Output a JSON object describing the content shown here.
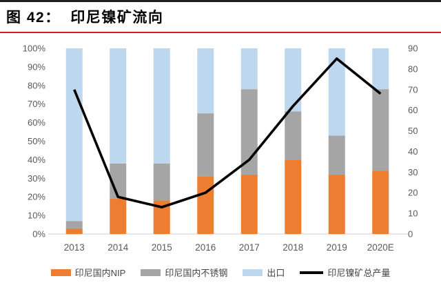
{
  "page": {
    "title": "图 42：  印尼镍矿流向"
  },
  "colors": {
    "top_rule": "#1f1f1f",
    "red_rule": "#cf1d1d",
    "axis_text": "#595959",
    "baseline": "#d9d9d9",
    "bar_nip": "#ed7d31",
    "bar_stainless": "#a5a5a5",
    "bar_export": "#bdd7ee",
    "line_total": "#000000"
  },
  "chart_data": {
    "type": "bar",
    "subtype": "stacked-bar-with-line",
    "title": "印尼镍矿流向",
    "categories": [
      "2013",
      "2014",
      "2015",
      "2016",
      "2017",
      "2018",
      "2019",
      "2020E"
    ],
    "series": [
      {
        "name": "印尼国内NIP",
        "kind": "bar",
        "axis": "left",
        "color": "#ed7d31",
        "values": [
          3,
          19,
          18,
          31,
          32,
          40,
          32,
          34
        ]
      },
      {
        "name": "印尼国内不锈钢",
        "kind": "bar",
        "axis": "left",
        "color": "#a5a5a5",
        "values": [
          4,
          19,
          20,
          34,
          46,
          26,
          21,
          44
        ]
      },
      {
        "name": "出口",
        "kind": "bar",
        "axis": "left",
        "color": "#bdd7ee",
        "values": [
          93,
          62,
          62,
          35,
          22,
          34,
          47,
          22
        ]
      },
      {
        "name": "印尼镍矿总产量",
        "kind": "line",
        "axis": "right",
        "color": "#000000",
        "values": [
          70,
          18,
          13,
          20,
          36,
          62,
          85,
          68
        ]
      }
    ],
    "left_axis": {
      "min": 0,
      "max": 100,
      "step": 10,
      "format": "percent",
      "ticks": [
        "0%",
        "10%",
        "20%",
        "30%",
        "40%",
        "50%",
        "60%",
        "70%",
        "80%",
        "90%",
        "100%"
      ]
    },
    "right_axis": {
      "min": 0,
      "max": 90,
      "step": 10,
      "ticks": [
        "0",
        "10",
        "20",
        "30",
        "40",
        "50",
        "60",
        "70",
        "80",
        "90"
      ]
    },
    "stacked": true,
    "grid": false,
    "legend_position": "bottom"
  }
}
